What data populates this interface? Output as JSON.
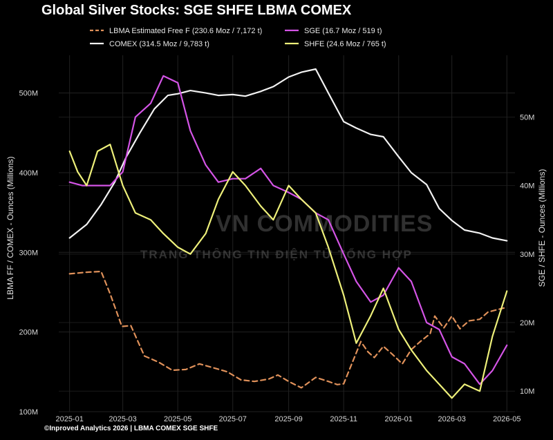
{
  "title": "Global Silver Stocks: SGE SHFE LBMA COMEX",
  "footer": "©Inproved Analytics 2026 | LBMA COMEX SGE SHFE",
  "watermark": {
    "brand": "VN COMMODITIES",
    "tagline": "TRANG THÔNG TIN ĐIỆN TỬ TỔNG HỢP"
  },
  "chart_data": {
    "type": "line",
    "title": "Global Silver Stocks: SGE SHFE LBMA COMEX",
    "x_ticks": [
      "2025-01",
      "2025-03",
      "2025-05",
      "2025-07",
      "2025-09",
      "2025-11",
      "2026-01",
      "2026-03",
      "2026-05"
    ],
    "x_range": [
      "2024-12-20",
      "2026-05-10"
    ],
    "ylabel_left": "LBMA FF / COMEX - Ounces (Millions)",
    "ylabel_right": "SGE / SHFE - Ounces (Millions)",
    "ylim_left": [
      100,
      530
    ],
    "ylim_right": [
      7,
      57
    ],
    "yticks_left": [
      "100M",
      "200M",
      "300M",
      "400M",
      "500M"
    ],
    "yticks_left_values": [
      100,
      200,
      300,
      400,
      500
    ],
    "yticks_right": [
      "10M",
      "20M",
      "30M",
      "40M",
      "50M"
    ],
    "yticks_right_values": [
      10,
      20,
      30,
      40,
      50
    ],
    "grid": true,
    "legend_position": "top",
    "series": [
      {
        "name": "LBMA Estimated Free F (230.6 Moz / 7,172 t)",
        "axis": "left",
        "color": "#e0915a",
        "dash": true,
        "x": [
          "2025-01-01",
          "2025-01-20",
          "2025-02-05",
          "2025-02-15",
          "2025-02-28",
          "2025-03-10",
          "2025-03-25",
          "2025-04-10",
          "2025-04-25",
          "2025-05-10",
          "2025-05-25",
          "2025-06-10",
          "2025-06-25",
          "2025-07-10",
          "2025-07-25",
          "2025-08-10",
          "2025-08-20",
          "2025-09-01",
          "2025-09-15",
          "2025-10-01",
          "2025-10-15",
          "2025-10-25",
          "2025-11-01",
          "2025-11-10",
          "2025-11-20",
          "2025-11-28",
          "2025-12-05",
          "2025-12-15",
          "2025-12-25",
          "2026-01-05",
          "2026-01-15",
          "2026-01-25",
          "2026-02-05",
          "2026-02-10",
          "2026-02-20",
          "2026-03-01",
          "2026-03-10",
          "2026-03-20",
          "2026-04-01",
          "2026-04-10",
          "2026-04-20",
          "2026-05-01"
        ],
        "values": [
          273,
          275,
          276,
          248,
          207,
          208,
          170,
          162,
          152,
          153,
          160,
          155,
          150,
          140,
          138,
          141,
          146,
          138,
          130,
          143,
          138,
          134,
          135,
          160,
          188,
          175,
          168,
          182,
          172,
          160,
          178,
          188,
          198,
          220,
          205,
          220,
          204,
          214,
          216,
          225,
          228,
          231
        ]
      },
      {
        "name": "COMEX (314.5 Moz / 9,783 t)",
        "axis": "left",
        "color": "#f2f2f2",
        "dash": false,
        "x": [
          "2025-01-01",
          "2025-01-20",
          "2025-02-05",
          "2025-02-20",
          "2025-03-05",
          "2025-03-20",
          "2025-04-05",
          "2025-04-20",
          "2025-05-01",
          "2025-05-15",
          "2025-06-01",
          "2025-06-15",
          "2025-07-01",
          "2025-07-15",
          "2025-08-01",
          "2025-08-15",
          "2025-09-01",
          "2025-09-15",
          "2025-10-01",
          "2025-10-15",
          "2025-11-01",
          "2025-11-15",
          "2025-12-01",
          "2025-12-15",
          "2026-01-01",
          "2026-01-15",
          "2026-02-01",
          "2026-02-15",
          "2026-03-01",
          "2026-03-15",
          "2026-04-01",
          "2026-04-15",
          "2026-05-01"
        ],
        "values": [
          318,
          335,
          360,
          388,
          420,
          450,
          480,
          497,
          499,
          503,
          500,
          497,
          498,
          496,
          502,
          508,
          520,
          526,
          530,
          500,
          464,
          456,
          448,
          445,
          420,
          400,
          385,
          355,
          340,
          328,
          324,
          318,
          314.5
        ]
      },
      {
        "name": "SGE (16.7 Moz / 519 t)",
        "axis": "right",
        "color": "#d454e6",
        "dash": false,
        "x": [
          "2025-01-01",
          "2025-01-15",
          "2025-02-01",
          "2025-02-15",
          "2025-03-01",
          "2025-03-15",
          "2025-04-01",
          "2025-04-15",
          "2025-05-01",
          "2025-05-15",
          "2025-06-01",
          "2025-06-15",
          "2025-07-01",
          "2025-07-15",
          "2025-08-01",
          "2025-08-15",
          "2025-09-01",
          "2025-09-15",
          "2025-10-01",
          "2025-10-15",
          "2025-11-01",
          "2025-11-15",
          "2025-12-01",
          "2025-12-15",
          "2026-01-01",
          "2026-01-15",
          "2026-02-01",
          "2026-02-15",
          "2026-03-01",
          "2026-03-15",
          "2026-04-01",
          "2026-04-15",
          "2026-05-01"
        ],
        "values": [
          40.5,
          40,
          40,
          40,
          42,
          50,
          52,
          56,
          55,
          48,
          43,
          40.5,
          41,
          41,
          42.5,
          40,
          39,
          38,
          36,
          35,
          30,
          26,
          23,
          24,
          28,
          26,
          20,
          19,
          15,
          14,
          11,
          13,
          16.7
        ]
      },
      {
        "name": "SHFE  (24.6 Moz / 765 t)",
        "axis": "right",
        "color": "#eef07a",
        "dash": false,
        "x": [
          "2025-01-01",
          "2025-01-10",
          "2025-01-20",
          "2025-02-01",
          "2025-02-15",
          "2025-03-01",
          "2025-03-15",
          "2025-04-01",
          "2025-04-15",
          "2025-05-01",
          "2025-05-15",
          "2025-06-01",
          "2025-06-15",
          "2025-07-01",
          "2025-07-15",
          "2025-08-01",
          "2025-08-15",
          "2025-09-01",
          "2025-09-15",
          "2025-10-01",
          "2025-10-15",
          "2025-11-01",
          "2025-11-15",
          "2025-12-01",
          "2025-12-15",
          "2026-01-01",
          "2026-01-15",
          "2026-02-01",
          "2026-02-15",
          "2026-03-01",
          "2026-03-15",
          "2026-04-01",
          "2026-04-15",
          "2026-05-01"
        ],
        "values": [
          45,
          42,
          40,
          45,
          46,
          40,
          36,
          35,
          33,
          31,
          30,
          33,
          38,
          42,
          40,
          37,
          35,
          40,
          38,
          36,
          31,
          24,
          17,
          21,
          25,
          19,
          16,
          13,
          11,
          9,
          11,
          10,
          18,
          24.6
        ]
      }
    ]
  }
}
